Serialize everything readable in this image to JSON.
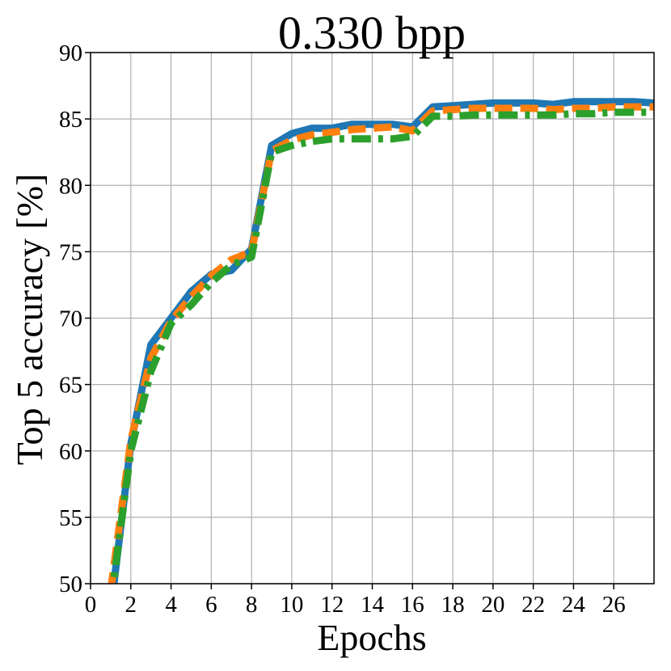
{
  "chart_data": {
    "type": "line",
    "title": "0.330 bpp",
    "xlabel": "Epochs",
    "ylabel": "Top 5 accuracy [%]",
    "xlim": [
      0,
      28
    ],
    "ylim": [
      50,
      90
    ],
    "xticks": [
      0,
      2,
      4,
      6,
      8,
      10,
      12,
      14,
      16,
      18,
      20,
      22,
      24,
      26
    ],
    "yticks": [
      50,
      55,
      60,
      65,
      70,
      75,
      80,
      85,
      90
    ],
    "grid": true,
    "series": [
      {
        "color": "#1f77b4",
        "style": "solid",
        "x": [
          1,
          2,
          3,
          4,
          5,
          6,
          7,
          8,
          9,
          10,
          11,
          12,
          13,
          14,
          15,
          16,
          17,
          18,
          19,
          20,
          21,
          22,
          23,
          24,
          25,
          26,
          27,
          28
        ],
        "y": [
          48.0,
          60.5,
          68.0,
          70.0,
          72.0,
          73.3,
          73.6,
          75.2,
          83.0,
          83.9,
          84.3,
          84.3,
          84.6,
          84.6,
          84.6,
          84.4,
          85.9,
          86.0,
          86.1,
          86.2,
          86.2,
          86.2,
          86.1,
          86.3,
          86.3,
          86.3,
          86.3,
          86.2
        ]
      },
      {
        "color": "#ff7f0e",
        "style": "dashed",
        "x": [
          1,
          2,
          3,
          4,
          5,
          6,
          7,
          8,
          9,
          10,
          11,
          12,
          13,
          14,
          15,
          16,
          17,
          18,
          19,
          20,
          21,
          22,
          23,
          24,
          25,
          26,
          27,
          28
        ],
        "y": [
          49.5,
          60.8,
          67.0,
          69.8,
          71.6,
          73.2,
          74.4,
          75.0,
          82.6,
          83.4,
          83.8,
          84.0,
          84.2,
          84.3,
          84.4,
          84.1,
          85.6,
          85.7,
          85.8,
          85.8,
          85.8,
          85.8,
          85.7,
          85.8,
          85.8,
          85.9,
          85.9,
          85.9
        ]
      },
      {
        "color": "#2ca02c",
        "style": "dashdot",
        "x": [
          1,
          2,
          3,
          4,
          5,
          6,
          7,
          8,
          9,
          10,
          11,
          12,
          13,
          14,
          15,
          16,
          17,
          18,
          19,
          20,
          21,
          22,
          23,
          24,
          25,
          26,
          27,
          28
        ],
        "y": [
          48.5,
          60.0,
          66.0,
          69.6,
          71.0,
          72.7,
          74.0,
          74.6,
          82.5,
          83.0,
          83.3,
          83.5,
          83.5,
          83.5,
          83.5,
          83.7,
          85.2,
          85.2,
          85.3,
          85.3,
          85.3,
          85.3,
          85.3,
          85.4,
          85.4,
          85.5,
          85.5,
          85.5
        ]
      }
    ]
  }
}
